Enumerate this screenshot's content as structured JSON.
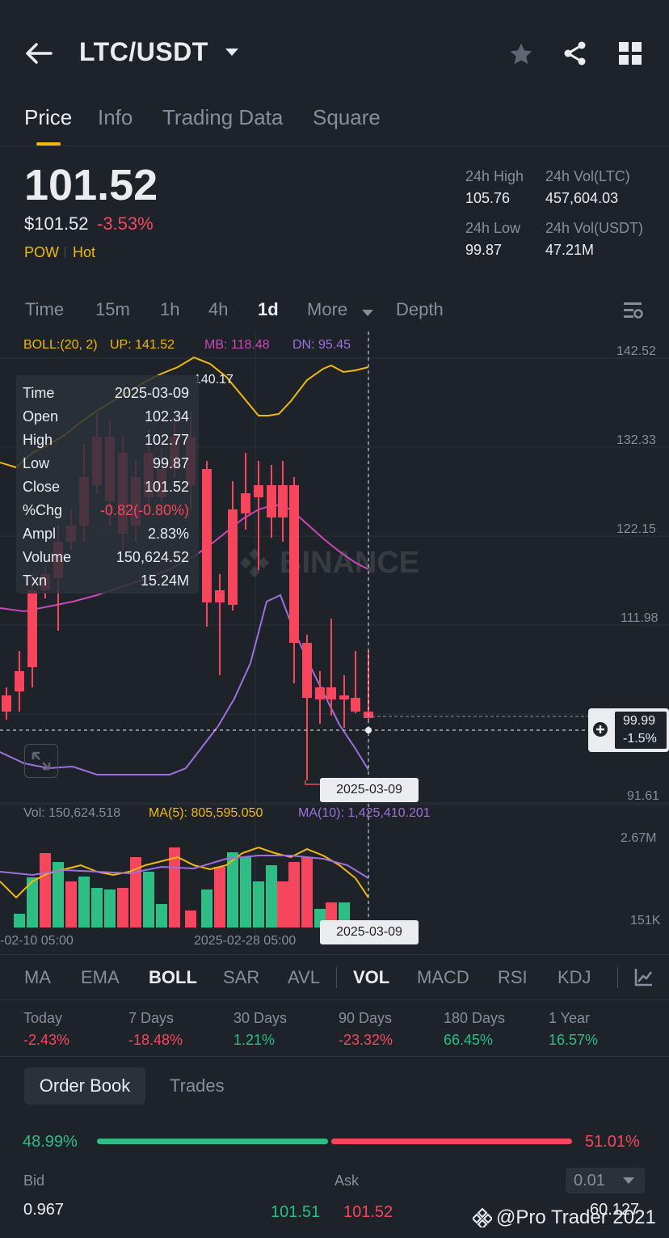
{
  "header": {
    "pair": "LTC/USDT"
  },
  "tabs": [
    "Price",
    "Info",
    "Trading Data",
    "Square"
  ],
  "price": {
    "last": "101.52",
    "fiat": "$101.52",
    "change": "-3.53%",
    "tags": [
      "POW",
      "Hot"
    ]
  },
  "stats": {
    "high_label": "24h High",
    "high": "105.76",
    "vol_ltc_label": "24h Vol(LTC)",
    "vol_ltc": "457,604.03",
    "low_label": "24h Low",
    "low": "99.87",
    "vol_usdt_label": "24h Vol(USDT)",
    "vol_usdt": "47.21M"
  },
  "intervals": [
    "Time",
    "15m",
    "1h",
    "4h",
    "1d",
    "More",
    "Depth"
  ],
  "boll": {
    "label": "BOLL:(20, 2)",
    "up": "UP: 141.52",
    "mb": "MB: 118.48",
    "dn": "DN: 95.45"
  },
  "price_axis": [
    "142.52",
    "132.33",
    "122.15",
    "111.98",
    "91.61"
  ],
  "current_marker": {
    "price": "99.99",
    "pct": "-1.5%"
  },
  "peak_label": "140.17",
  "crosshair_date": "2025-03-09",
  "tooltip": [
    {
      "k": "Time",
      "v": "2025-03-09"
    },
    {
      "k": "Open",
      "v": "102.34"
    },
    {
      "k": "High",
      "v": "102.77"
    },
    {
      "k": "Low",
      "v": "99.87"
    },
    {
      "k": "Close",
      "v": "101.52"
    },
    {
      "k": "%Chg",
      "v": "-0.82(-0.80%)"
    },
    {
      "k": "Ampl",
      "v": "2.83%"
    },
    {
      "k": "Volume",
      "v": "150,624.52"
    },
    {
      "k": "Txn",
      "v": "15.24M"
    }
  ],
  "volume": {
    "vol": "Vol: 150,624.518",
    "ma5": "MA(5): 805,595.050",
    "ma10": "MA(10): 1,425,410.201",
    "axis_top": "2.67M",
    "axis_bottom": "151K"
  },
  "time_axis": [
    "-02-10 05:00",
    "2025-02-28 05:00"
  ],
  "indicators": [
    "MA",
    "EMA",
    "BOLL",
    "SAR",
    "AVL",
    "VOL",
    "MACD",
    "RSI",
    "KDJ"
  ],
  "performance": [
    {
      "label": "Today",
      "value": "-2.43%"
    },
    {
      "label": "7 Days",
      "value": "-18.48%"
    },
    {
      "label": "30 Days",
      "value": "1.21%"
    },
    {
      "label": "90 Days",
      "value": "-23.32%"
    },
    {
      "label": "180 Days",
      "value": "66.45%"
    },
    {
      "label": "1 Year",
      "value": "16.57%"
    }
  ],
  "orderbook": {
    "tab_active": "Order Book",
    "tab_trades": "Trades",
    "bid_pct": "48.99%",
    "ask_pct": "51.01%",
    "bid_label": "Bid",
    "ask_label": "Ask",
    "precision": "0.01",
    "rows": [
      {
        "bid_qty": "0.967",
        "bid": "101.51",
        "ask": "101.52",
        "ask_qty": "60.127"
      }
    ]
  },
  "watermark": "@Pro Trader 2021",
  "colors": {
    "up": "#2ebd85",
    "down": "#f6465d",
    "accent": "#f0b90b",
    "bg": "#1e2329"
  }
}
